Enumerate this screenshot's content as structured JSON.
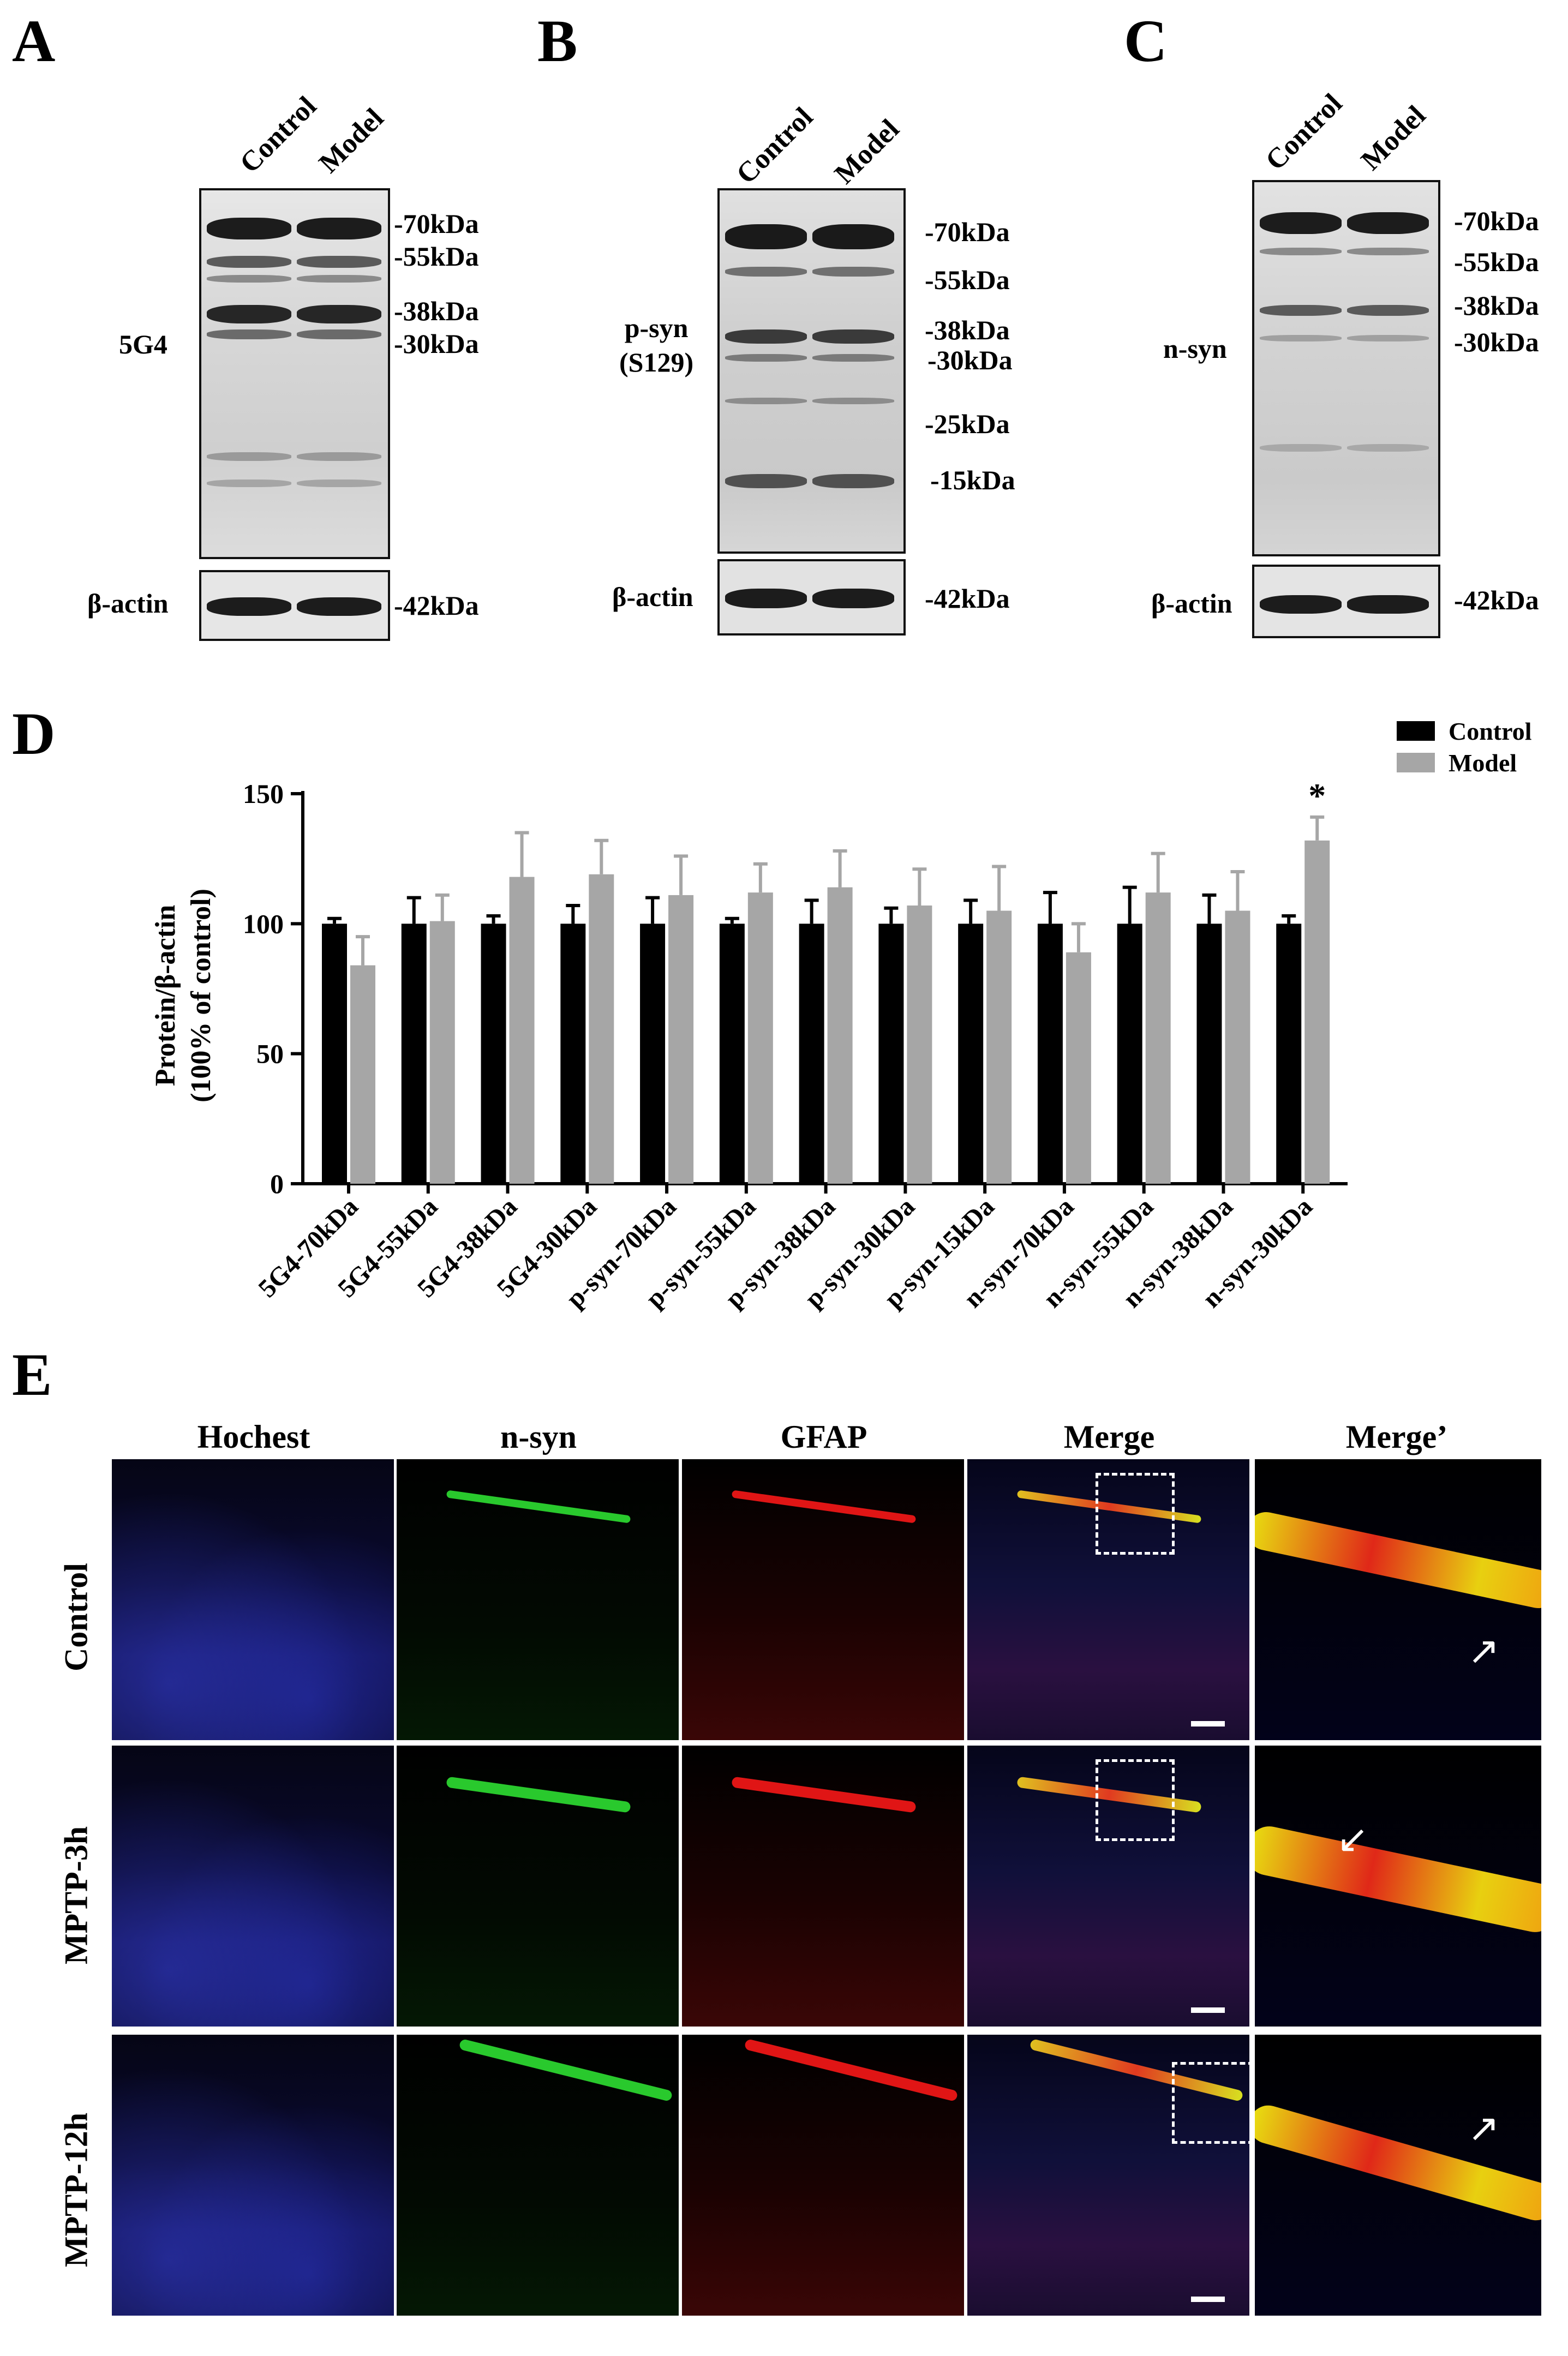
{
  "panels": {
    "A": "A",
    "B": "B",
    "C": "C",
    "D": "D",
    "E": "E"
  },
  "western_blots": [
    {
      "lanes": [
        "Control",
        "Model"
      ],
      "antibody": "5G4",
      "markers": [
        "-70kDa",
        "-55kDa",
        "-38kDa",
        "-30kDa"
      ],
      "loading": "β-actin",
      "loading_marker": "-42kDa"
    },
    {
      "lanes": [
        "Control",
        "Model"
      ],
      "antibody_line1": "p-syn",
      "antibody_line2": "(S129)",
      "markers": [
        "-70kDa",
        "-55kDa",
        "-38kDa",
        "-30kDa",
        "-25kDa",
        "-15kDa"
      ],
      "loading": "β-actin",
      "loading_marker": "-42kDa"
    },
    {
      "lanes": [
        "Control",
        "Model"
      ],
      "antibody": "n-syn",
      "markers": [
        "-70kDa",
        "-55kDa",
        "-38kDa",
        "-30kDa"
      ],
      "loading": "β-actin",
      "loading_marker": "-42kDa"
    }
  ],
  "chart_data": {
    "type": "bar",
    "ylabel_line1": "Protein/β-actin",
    "ylabel_line2": "(100% of control)",
    "ylim": [
      0,
      150
    ],
    "yticks": [
      "0",
      "50",
      "100",
      "150"
    ],
    "categories": [
      "5G4-70kDa",
      "5G4-55kDa",
      "5G4-38kDa",
      "5G4-30kDa",
      "p-syn-70kDa",
      "p-syn-55kDa",
      "p-syn-38kDa",
      "p-syn-30kDa",
      "p-syn-15kDa",
      "n-syn-70kDa",
      "n-syn-55kDa",
      "n-syn-38kDa",
      "n-syn-30kDa"
    ],
    "series": [
      {
        "name": "Control",
        "color": "#000000",
        "values": [
          100,
          100,
          100,
          100,
          100,
          100,
          100,
          100,
          100,
          100,
          100,
          100,
          100
        ],
        "errors": [
          2,
          10,
          3,
          7,
          10,
          2,
          9,
          6,
          9,
          12,
          14,
          11,
          3
        ]
      },
      {
        "name": "Model",
        "color": "#a6a6a6",
        "values": [
          84,
          101,
          118,
          119,
          111,
          112,
          114,
          107,
          105,
          89,
          112,
          105,
          132
        ],
        "errors": [
          11,
          10,
          17,
          13,
          15,
          11,
          14,
          14,
          17,
          11,
          15,
          15,
          9
        ]
      }
    ],
    "significance": [
      {
        "category": "n-syn-30kDa",
        "label": "*"
      }
    ],
    "legend_position": "top-right"
  },
  "microscopy": {
    "columns": [
      "Hochest",
      "n-syn",
      "GFAP",
      "Merge",
      "Merge’"
    ],
    "rows": [
      "Control",
      "MPTP-3h",
      "MPTP-12h"
    ]
  }
}
